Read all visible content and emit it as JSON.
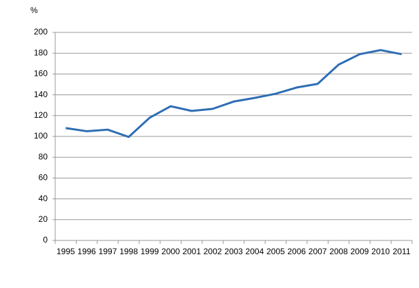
{
  "chart_data": {
    "type": "line",
    "ylabel": "%",
    "categories": [
      "1995",
      "1996",
      "1997",
      "1998",
      "1999",
      "2000",
      "2001",
      "2002",
      "2003",
      "2004",
      "2005",
      "2006",
      "2007",
      "2008",
      "2009",
      "2010",
      "2011"
    ],
    "values": [
      108,
      105,
      106.5,
      99.5,
      118,
      129,
      124.5,
      126.5,
      133.5,
      137,
      141,
      147,
      150.5,
      169,
      179,
      183,
      179
    ],
    "color": "#2e6db4",
    "ylim": [
      0,
      200
    ],
    "yticks": [
      0,
      20,
      40,
      60,
      80,
      100,
      120,
      140,
      160,
      180,
      200
    ],
    "grid": true
  }
}
